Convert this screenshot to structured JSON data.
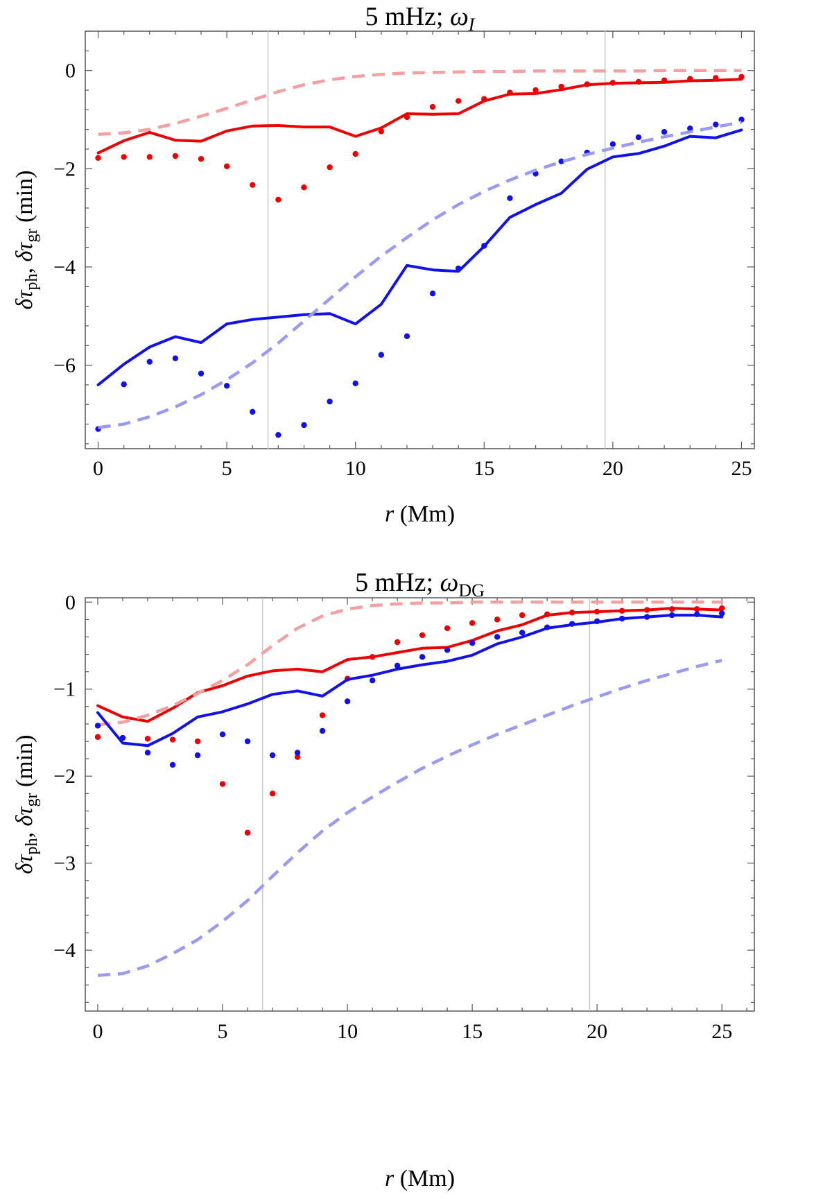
{
  "chart_data": [
    {
      "type": "line",
      "title": "5 mHz;",
      "title_symbol": "ω",
      "title_subscript": "I",
      "xlabel_var": "r",
      "xlabel_unit": "(Mm)",
      "ylabel_symbol": "δτ",
      "ylabel_sub1": "ph",
      "ylabel_sub2": "gr",
      "ylabel_unit": "(min)",
      "xlim": [
        -0.5,
        25.5
      ],
      "ylim": [
        -7.7,
        0.8
      ],
      "xticks": [
        0,
        5,
        10,
        15,
        20,
        25
      ],
      "yticks": [
        0,
        -2,
        -4,
        -6
      ],
      "xtick_labels": [
        "0",
        "5",
        "10",
        "15",
        "20",
        "25"
      ],
      "ytick_labels": [
        "0",
        "−2",
        "−4",
        "−6"
      ],
      "vlines": [
        6.6,
        19.7
      ],
      "x": [
        0,
        1,
        2,
        3,
        4,
        5,
        6,
        7,
        8,
        9,
        10,
        11,
        12,
        13,
        14,
        15,
        16,
        17,
        18,
        19,
        20,
        21,
        22,
        23,
        24,
        25
      ],
      "series": [
        {
          "name": "red solid",
          "color": "#ee0000",
          "style": "solid",
          "values": [
            -1.68,
            -1.43,
            -1.26,
            -1.42,
            -1.44,
            -1.23,
            -1.13,
            -1.12,
            -1.15,
            -1.15,
            -1.34,
            -1.17,
            -0.88,
            -0.89,
            -0.88,
            -0.62,
            -0.48,
            -0.47,
            -0.39,
            -0.29,
            -0.26,
            -0.25,
            -0.24,
            -0.21,
            -0.2,
            -0.18
          ]
        },
        {
          "name": "red dots",
          "color": "#ee0000",
          "style": "dots",
          "values": [
            -1.78,
            -1.76,
            -1.76,
            -1.74,
            -1.8,
            -1.95,
            -2.33,
            -2.63,
            -2.38,
            -1.97,
            -1.7,
            -1.24,
            -0.95,
            -0.74,
            -0.62,
            -0.58,
            -0.45,
            -0.4,
            -0.33,
            -0.28,
            -0.25,
            -0.23,
            -0.2,
            -0.17,
            -0.15,
            -0.13
          ]
        },
        {
          "name": "red dashed",
          "color": "#f4a0a0",
          "style": "dashed",
          "values": [
            -1.3,
            -1.27,
            -1.2,
            -1.08,
            -0.93,
            -0.77,
            -0.6,
            -0.43,
            -0.29,
            -0.19,
            -0.12,
            -0.08,
            -0.05,
            -0.04,
            -0.03,
            -0.02,
            -0.02,
            -0.01,
            -0.01,
            -0.01,
            -0.01,
            -0.01,
            0,
            0,
            0,
            0
          ]
        },
        {
          "name": "blue solid",
          "color": "#1111ee",
          "style": "solid",
          "values": [
            -6.4,
            -5.98,
            -5.63,
            -5.42,
            -5.54,
            -5.16,
            -5.07,
            -5.02,
            -4.97,
            -4.95,
            -5.16,
            -4.76,
            -3.97,
            -4.06,
            -4.09,
            -3.58,
            -2.99,
            -2.73,
            -2.5,
            -2.01,
            -1.76,
            -1.69,
            -1.54,
            -1.34,
            -1.37,
            -1.21
          ]
        },
        {
          "name": "blue dots",
          "color": "#1111ee",
          "style": "dots",
          "values": [
            -7.3,
            -6.39,
            -5.93,
            -5.86,
            -6.17,
            -6.42,
            -6.95,
            -7.42,
            -7.22,
            -6.74,
            -6.37,
            -5.79,
            -5.41,
            -4.54,
            -4.03,
            -3.57,
            -2.6,
            -2.1,
            -1.85,
            -1.67,
            -1.5,
            -1.36,
            -1.25,
            -1.18,
            -1.1,
            -1.0
          ]
        },
        {
          "name": "blue dashed",
          "color": "#9a9af4",
          "style": "dashed",
          "values": [
            -7.27,
            -7.2,
            -7.05,
            -6.85,
            -6.6,
            -6.3,
            -5.95,
            -5.55,
            -5.1,
            -4.65,
            -4.2,
            -3.78,
            -3.4,
            -3.04,
            -2.73,
            -2.46,
            -2.23,
            -2.03,
            -1.86,
            -1.71,
            -1.58,
            -1.46,
            -1.35,
            -1.25,
            -1.15,
            -1.05
          ]
        }
      ]
    },
    {
      "type": "line",
      "title": "5 mHz;",
      "title_symbol": "ω",
      "title_subscript": "DG",
      "xlabel_var": "r",
      "xlabel_unit": "(Mm)",
      "ylabel_symbol": "δτ",
      "ylabel_sub1": "ph",
      "ylabel_sub2": "gr",
      "ylabel_unit": "(min)",
      "xlim": [
        -0.5,
        26.3
      ],
      "ylim": [
        -4.7,
        0.05
      ],
      "xticks": [
        0,
        5,
        10,
        15,
        20,
        25
      ],
      "yticks": [
        0,
        -1,
        -2,
        -3,
        -4
      ],
      "xtick_labels": [
        "0",
        "5",
        "10",
        "15",
        "20",
        "25"
      ],
      "ytick_labels": [
        "0",
        "−1",
        "−2",
        "−3",
        "−4"
      ],
      "vlines": [
        6.6,
        19.7
      ],
      "x": [
        0,
        1,
        2,
        3,
        4,
        5,
        6,
        7,
        8,
        9,
        10,
        11,
        12,
        13,
        14,
        15,
        16,
        17,
        18,
        19,
        20,
        21,
        22,
        23,
        24,
        25
      ],
      "series": [
        {
          "name": "red solid",
          "color": "#ee0000",
          "style": "solid",
          "values": [
            -1.19,
            -1.32,
            -1.37,
            -1.22,
            -1.04,
            -0.96,
            -0.85,
            -0.79,
            -0.77,
            -0.8,
            -0.66,
            -0.63,
            -0.58,
            -0.53,
            -0.52,
            -0.44,
            -0.33,
            -0.26,
            -0.15,
            -0.12,
            -0.11,
            -0.1,
            -0.09,
            -0.07,
            -0.08,
            -0.09
          ]
        },
        {
          "name": "red dots",
          "color": "#ee0000",
          "style": "dots",
          "values": [
            -1.55,
            -1.56,
            -1.57,
            -1.58,
            -1.6,
            -2.09,
            -2.65,
            -2.2,
            -1.78,
            -1.3,
            -0.88,
            -0.63,
            -0.46,
            -0.38,
            -0.3,
            -0.24,
            -0.2,
            -0.15,
            -0.14,
            -0.12,
            -0.11,
            -0.1,
            -0.09,
            -0.08,
            -0.08,
            -0.07
          ]
        },
        {
          "name": "red dashed",
          "color": "#f4a0a0",
          "style": "dashed",
          "values": [
            -1.41,
            -1.38,
            -1.3,
            -1.19,
            -1.05,
            -0.9,
            -0.72,
            -0.5,
            -0.3,
            -0.16,
            -0.08,
            -0.04,
            -0.02,
            -0.01,
            -0.01,
            0,
            0,
            0,
            0,
            0,
            0,
            0,
            0,
            0,
            0,
            0
          ]
        },
        {
          "name": "blue solid",
          "color": "#1111ee",
          "style": "solid",
          "values": [
            -1.27,
            -1.62,
            -1.65,
            -1.51,
            -1.32,
            -1.26,
            -1.17,
            -1.06,
            -1.02,
            -1.08,
            -0.89,
            -0.84,
            -0.77,
            -0.72,
            -0.68,
            -0.61,
            -0.48,
            -0.4,
            -0.3,
            -0.26,
            -0.23,
            -0.19,
            -0.17,
            -0.15,
            -0.15,
            -0.17
          ]
        },
        {
          "name": "blue dots",
          "color": "#1111ee",
          "style": "dots",
          "values": [
            -1.42,
            -1.56,
            -1.73,
            -1.87,
            -1.76,
            -1.52,
            -1.6,
            -1.76,
            -1.73,
            -1.48,
            -1.14,
            -0.9,
            -0.73,
            -0.63,
            -0.55,
            -0.47,
            -0.4,
            -0.35,
            -0.29,
            -0.25,
            -0.22,
            -0.19,
            -0.17,
            -0.15,
            -0.14,
            -0.13
          ]
        },
        {
          "name": "blue dashed",
          "color": "#9a9af4",
          "style": "dashed",
          "values": [
            -4.29,
            -4.27,
            -4.18,
            -4.04,
            -3.88,
            -3.67,
            -3.43,
            -3.15,
            -2.88,
            -2.63,
            -2.42,
            -2.24,
            -2.07,
            -1.91,
            -1.77,
            -1.64,
            -1.52,
            -1.41,
            -1.3,
            -1.19,
            -1.09,
            -0.99,
            -0.9,
            -0.82,
            -0.74,
            -0.67
          ]
        }
      ]
    }
  ]
}
